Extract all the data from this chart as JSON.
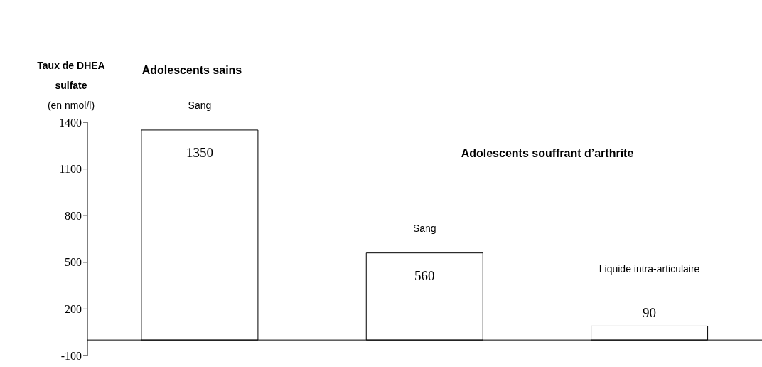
{
  "chart_data": {
    "type": "bar",
    "ylabel": "Taux de DHEA sulfate (en nmol/l)",
    "categories": [
      "Sang",
      "Sang",
      "Liquide intra-articulaire"
    ],
    "values": [
      1350,
      560,
      90
    ],
    "color": "#ffffff",
    "ylim": [
      -100,
      1400
    ],
    "yticks": [
      -100,
      200,
      500,
      800,
      1100,
      1400
    ],
    "data_labels": true,
    "grid": false,
    "legend": false,
    "annotations": [
      "Adolescents sains",
      "Adolescents souffrant d’arthrite"
    ]
  }
}
